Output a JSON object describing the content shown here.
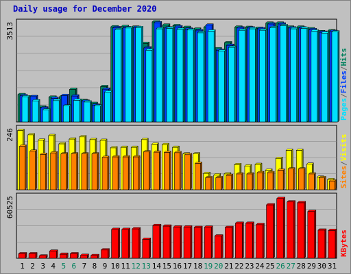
{
  "title": "Daily usage for December 2020",
  "colors": {
    "background": "#c0c0c0",
    "title": "#0000c0",
    "hits": "#00805c",
    "files": "#0040ff",
    "pages": "#00e0ff",
    "visits": "#ffff00",
    "sites": "#ff8000",
    "kbytes": "#ff0000",
    "weekend": "#00805c",
    "weekday": "#000000"
  },
  "chart_data": {
    "type": "bar",
    "title": "Daily usage for December 2020",
    "categories": [
      "1",
      "2",
      "3",
      "4",
      "5",
      "6",
      "7",
      "8",
      "9",
      "10",
      "11",
      "12",
      "13",
      "14",
      "15",
      "16",
      "17",
      "18",
      "19",
      "20",
      "21",
      "22",
      "23",
      "24",
      "25",
      "26",
      "27",
      "28",
      "29",
      "30",
      "31"
    ],
    "weekend_days": [
      "5",
      "6",
      "12",
      "13",
      "19",
      "20",
      "26",
      "27"
    ],
    "panels": [
      {
        "name": "hits-panel",
        "ymax_label": "3513",
        "ylim": [
          0,
          3513
        ],
        "legend": [
          {
            "label": "Pages",
            "color": "#00e0ff"
          },
          {
            "label": "/",
            "color": "#606060"
          },
          {
            "label": "Files",
            "color": "#0040ff"
          },
          {
            "label": "/",
            "color": "#606060"
          },
          {
            "label": "Hits",
            "color": "#00805c"
          }
        ],
        "series": [
          {
            "name": "Hits",
            "color": "#00805c",
            "values": [
              960,
              880,
              520,
              870,
              880,
              1140,
              750,
              650,
              1240,
              3340,
              3350,
              3330,
              2760,
              3513,
              3400,
              3380,
              3320,
              3260,
              3330,
              2570,
              2780,
              3330,
              3320,
              3290,
              3470,
              3470,
              3330,
              3330,
              3270,
              3170,
              3200
            ]
          },
          {
            "name": "Files",
            "color": "#0040ff",
            "values": [
              920,
              890,
              490,
              830,
              930,
              910,
              730,
              590,
              1150,
              3310,
              3310,
              3320,
              2600,
              3480,
              3300,
              3340,
              3260,
              3200,
              3400,
              2520,
              2690,
              3300,
              3300,
              3270,
              3440,
              3440,
              3300,
              3300,
              3240,
              3150,
              3180
            ]
          },
          {
            "name": "Pages",
            "color": "#00e0ff",
            "values": [
              880,
              740,
              420,
              750,
              560,
              760,
              700,
              560,
              1050,
              3240,
              3300,
              3310,
              2520,
              3270,
              3280,
              3250,
              3230,
              3130,
              3190,
              2490,
              2620,
              3220,
              3270,
              3220,
              3310,
              3380,
              3270,
              3280,
              3190,
              3120,
              3160
            ]
          }
        ]
      },
      {
        "name": "visits-panel",
        "ymax_label": "246",
        "ylim": [
          0,
          246
        ],
        "legend": [
          {
            "label": "Sites",
            "color": "#ff8000"
          },
          {
            "label": "/",
            "color": "#606060"
          },
          {
            "label": "Visits",
            "color": "#ffff00"
          }
        ],
        "series": [
          {
            "name": "Visits",
            "color": "#ffff00",
            "values": [
              236,
              219,
              198,
              216,
              183,
              202,
              211,
              200,
              197,
              167,
              169,
              169,
              200,
              182,
              180,
              169,
              143,
              143,
              65,
              59,
              63,
              100,
              95,
              101,
              78,
              125,
              157,
              157,
              102,
              50,
              40
            ]
          },
          {
            "name": "Sites",
            "color": "#ff8000",
            "values": [
              174,
              154,
              141,
              147,
              143,
              143,
              143,
              143,
              129,
              131,
              131,
              131,
              151,
              150,
              149,
              148,
              140,
              105,
              48,
              48,
              57,
              63,
              63,
              68,
              68,
              78,
              83,
              83,
              63,
              48,
              35
            ]
          }
        ]
      },
      {
        "name": "kbytes-panel",
        "ymax_label": "60525",
        "ylim": [
          0,
          60525
        ],
        "legend": [
          {
            "label": "KBytes",
            "color": "#ff0000"
          }
        ],
        "series": [
          {
            "name": "KBytes",
            "color": "#ff0000",
            "values": [
              4300,
              4300,
              2200,
              6900,
              3900,
              4300,
              2800,
              2600,
              8100,
              28000,
              28000,
              28500,
              18400,
              31800,
              31200,
              30300,
              30300,
              29900,
              30200,
              21600,
              29900,
              34000,
              34000,
              32600,
              51800,
              58000,
              54700,
              53900,
              45400,
              27300,
              27000
            ]
          }
        ]
      }
    ]
  }
}
